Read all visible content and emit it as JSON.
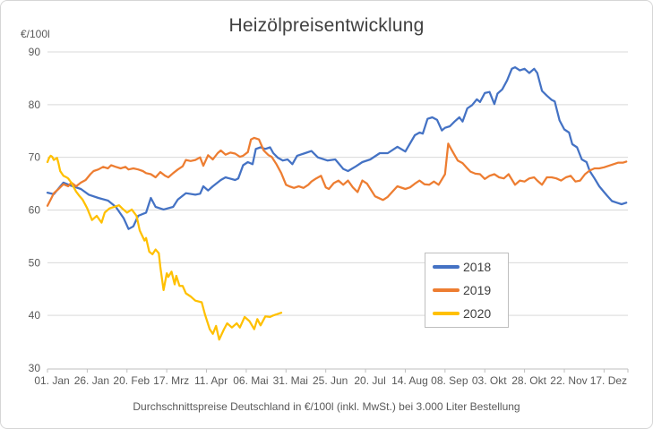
{
  "colors": {
    "background": "#FFFFFF",
    "border": "#D6D6D6",
    "gridline": "#D9D9D9",
    "axis_line": "#BFBFBF",
    "tick_text": "#595959",
    "title_text": "#404040",
    "legend_text": "#404040",
    "series_2018": "#4472C4",
    "series_2019": "#ED7D31",
    "series_2020": "#FFC000"
  },
  "chart_data": {
    "type": "line",
    "title": "Heizölpreisentwicklung",
    "unit_label": "€/100l",
    "caption": "Durchschnittspreise Deutschland in €/100l (inkl. MwSt.) bei 3.000 Liter Bestellung",
    "ylim": [
      30,
      90
    ],
    "yticks": [
      30,
      40,
      50,
      60,
      70,
      80,
      90
    ],
    "x_unit": "day_of_year",
    "xlim": [
      0,
      365
    ],
    "grid": "horizontal",
    "legend_position": "inside-right",
    "xticks": [
      {
        "label": "01. Jan",
        "day": 0
      },
      {
        "label": "26. Jan",
        "day": 25
      },
      {
        "label": "20. Feb",
        "day": 50
      },
      {
        "label": "17. Mrz",
        "day": 75
      },
      {
        "label": "11. Apr",
        "day": 100
      },
      {
        "label": "06. Mai",
        "day": 125
      },
      {
        "label": "31. Mai",
        "day": 150
      },
      {
        "label": "25. Jun",
        "day": 175
      },
      {
        "label": "20. Jul",
        "day": 200
      },
      {
        "label": "14. Aug",
        "day": 225
      },
      {
        "label": "08. Sep",
        "day": 250
      },
      {
        "label": "03. Okt",
        "day": 275
      },
      {
        "label": "28. Okt",
        "day": 300
      },
      {
        "label": "22. Nov",
        "day": 325
      },
      {
        "label": "17. Dez",
        "day": 350
      }
    ],
    "series": [
      {
        "name": "2018",
        "color": "#4472C4",
        "points": [
          [
            0,
            63.3
          ],
          [
            4,
            63.0
          ],
          [
            10,
            65.2
          ],
          [
            15,
            64.6
          ],
          [
            21,
            64.0
          ],
          [
            26,
            62.9
          ],
          [
            32,
            62.3
          ],
          [
            38,
            61.8
          ],
          [
            43,
            60.6
          ],
          [
            48,
            58.4
          ],
          [
            51,
            56.4
          ],
          [
            54,
            56.9
          ],
          [
            57,
            58.9
          ],
          [
            62,
            59.5
          ],
          [
            65,
            62.3
          ],
          [
            68,
            60.6
          ],
          [
            73,
            60.1
          ],
          [
            79,
            60.6
          ],
          [
            82,
            62.0
          ],
          [
            87,
            63.2
          ],
          [
            93,
            62.9
          ],
          [
            96,
            63.1
          ],
          [
            98,
            64.5
          ],
          [
            101,
            63.7
          ],
          [
            104,
            64.5
          ],
          [
            109,
            65.7
          ],
          [
            112,
            66.2
          ],
          [
            118,
            65.7
          ],
          [
            120,
            66.0
          ],
          [
            123,
            68.5
          ],
          [
            126,
            69.1
          ],
          [
            129,
            68.7
          ],
          [
            131,
            71.6
          ],
          [
            134,
            71.9
          ],
          [
            137,
            71.6
          ],
          [
            140,
            71.9
          ],
          [
            142,
            70.8
          ],
          [
            145,
            69.9
          ],
          [
            148,
            69.4
          ],
          [
            151,
            69.6
          ],
          [
            154,
            68.7
          ],
          [
            157,
            70.3
          ],
          [
            162,
            70.8
          ],
          [
            166,
            71.2
          ],
          [
            170,
            70.0
          ],
          [
            176,
            69.4
          ],
          [
            181,
            69.6
          ],
          [
            186,
            67.8
          ],
          [
            189,
            67.4
          ],
          [
            194,
            68.3
          ],
          [
            198,
            69.1
          ],
          [
            203,
            69.6
          ],
          [
            209,
            70.8
          ],
          [
            214,
            70.8
          ],
          [
            220,
            72.0
          ],
          [
            225,
            71.1
          ],
          [
            231,
            74.2
          ],
          [
            234,
            74.7
          ],
          [
            236,
            74.5
          ],
          [
            239,
            77.3
          ],
          [
            242,
            77.6
          ],
          [
            245,
            77.1
          ],
          [
            248,
            75.1
          ],
          [
            250,
            75.6
          ],
          [
            253,
            75.9
          ],
          [
            256,
            76.8
          ],
          [
            259,
            77.6
          ],
          [
            261,
            76.8
          ],
          [
            264,
            79.3
          ],
          [
            267,
            79.9
          ],
          [
            270,
            81.0
          ],
          [
            272,
            80.5
          ],
          [
            275,
            82.2
          ],
          [
            278,
            82.4
          ],
          [
            281,
            80.1
          ],
          [
            283,
            82.1
          ],
          [
            286,
            82.9
          ],
          [
            289,
            84.6
          ],
          [
            292,
            86.8
          ],
          [
            294,
            87.1
          ],
          [
            297,
            86.5
          ],
          [
            300,
            86.8
          ],
          [
            303,
            86.0
          ],
          [
            306,
            86.8
          ],
          [
            308,
            86.0
          ],
          [
            311,
            82.6
          ],
          [
            314,
            81.7
          ],
          [
            317,
            80.9
          ],
          [
            319,
            80.6
          ],
          [
            322,
            77.0
          ],
          [
            325,
            75.3
          ],
          [
            328,
            74.7
          ],
          [
            330,
            72.5
          ],
          [
            333,
            71.9
          ],
          [
            336,
            69.6
          ],
          [
            339,
            69.1
          ],
          [
            341,
            67.4
          ],
          [
            344,
            66.0
          ],
          [
            347,
            64.5
          ],
          [
            350,
            63.4
          ],
          [
            352,
            62.7
          ],
          [
            355,
            61.7
          ],
          [
            358,
            61.4
          ],
          [
            361,
            61.1
          ],
          [
            364,
            61.4
          ]
        ]
      },
      {
        "name": "2019",
        "color": "#ED7D31",
        "points": [
          [
            0,
            60.8
          ],
          [
            2,
            62.0
          ],
          [
            4,
            63.2
          ],
          [
            7,
            64.0
          ],
          [
            10,
            64.9
          ],
          [
            13,
            64.5
          ],
          [
            15,
            65.2
          ],
          [
            18,
            64.5
          ],
          [
            21,
            65.2
          ],
          [
            24,
            65.7
          ],
          [
            27,
            66.8
          ],
          [
            29,
            67.4
          ],
          [
            32,
            67.7
          ],
          [
            35,
            68.2
          ],
          [
            38,
            67.9
          ],
          [
            40,
            68.5
          ],
          [
            43,
            68.2
          ],
          [
            46,
            67.9
          ],
          [
            49,
            68.2
          ],
          [
            51,
            67.7
          ],
          [
            54,
            67.9
          ],
          [
            57,
            67.7
          ],
          [
            60,
            67.4
          ],
          [
            62,
            67.0
          ],
          [
            65,
            66.8
          ],
          [
            68,
            66.2
          ],
          [
            71,
            67.2
          ],
          [
            74,
            66.5
          ],
          [
            76,
            66.2
          ],
          [
            79,
            67.0
          ],
          [
            82,
            67.7
          ],
          [
            85,
            68.3
          ],
          [
            87,
            69.5
          ],
          [
            90,
            69.3
          ],
          [
            93,
            69.5
          ],
          [
            96,
            70.0
          ],
          [
            98,
            68.4
          ],
          [
            101,
            70.4
          ],
          [
            104,
            69.6
          ],
          [
            107,
            70.8
          ],
          [
            109,
            71.3
          ],
          [
            112,
            70.5
          ],
          [
            115,
            70.9
          ],
          [
            118,
            70.7
          ],
          [
            121,
            70.1
          ],
          [
            123,
            70.3
          ],
          [
            126,
            71.0
          ],
          [
            128,
            73.4
          ],
          [
            130,
            73.7
          ],
          [
            133,
            73.4
          ],
          [
            136,
            71.3
          ],
          [
            139,
            70.4
          ],
          [
            141,
            70.1
          ],
          [
            144,
            68.7
          ],
          [
            147,
            67.0
          ],
          [
            150,
            64.8
          ],
          [
            152,
            64.5
          ],
          [
            155,
            64.2
          ],
          [
            158,
            64.5
          ],
          [
            161,
            64.2
          ],
          [
            164,
            64.8
          ],
          [
            166,
            65.4
          ],
          [
            169,
            66.0
          ],
          [
            172,
            66.5
          ],
          [
            175,
            64.3
          ],
          [
            177,
            64.0
          ],
          [
            180,
            65.1
          ],
          [
            183,
            65.6
          ],
          [
            186,
            64.8
          ],
          [
            189,
            65.6
          ],
          [
            192,
            64.3
          ],
          [
            195,
            63.4
          ],
          [
            198,
            65.6
          ],
          [
            201,
            65.0
          ],
          [
            206,
            62.6
          ],
          [
            211,
            61.9
          ],
          [
            214,
            62.5
          ],
          [
            217,
            63.5
          ],
          [
            220,
            64.5
          ],
          [
            225,
            64.0
          ],
          [
            228,
            64.3
          ],
          [
            231,
            65.0
          ],
          [
            234,
            65.6
          ],
          [
            237,
            64.9
          ],
          [
            240,
            64.8
          ],
          [
            243,
            65.4
          ],
          [
            246,
            64.8
          ],
          [
            250,
            66.8
          ],
          [
            252,
            72.6
          ],
          [
            254,
            71.5
          ],
          [
            258,
            69.4
          ],
          [
            261,
            68.9
          ],
          [
            264,
            67.9
          ],
          [
            266,
            67.3
          ],
          [
            269,
            66.9
          ],
          [
            272,
            66.8
          ],
          [
            275,
            65.9
          ],
          [
            278,
            66.5
          ],
          [
            281,
            66.8
          ],
          [
            284,
            66.2
          ],
          [
            287,
            66.0
          ],
          [
            290,
            66.8
          ],
          [
            294,
            64.8
          ],
          [
            297,
            65.6
          ],
          [
            300,
            65.4
          ],
          [
            303,
            66.0
          ],
          [
            306,
            66.2
          ],
          [
            308,
            65.6
          ],
          [
            311,
            64.8
          ],
          [
            314,
            66.2
          ],
          [
            317,
            66.2
          ],
          [
            320,
            66.0
          ],
          [
            323,
            65.6
          ],
          [
            326,
            66.2
          ],
          [
            329,
            66.5
          ],
          [
            332,
            65.4
          ],
          [
            335,
            65.6
          ],
          [
            338,
            66.8
          ],
          [
            341,
            67.5
          ],
          [
            344,
            67.9
          ],
          [
            347,
            67.9
          ],
          [
            350,
            68.1
          ],
          [
            353,
            68.4
          ],
          [
            356,
            68.7
          ],
          [
            359,
            69.0
          ],
          [
            362,
            69.0
          ],
          [
            364,
            69.2
          ]
        ]
      },
      {
        "name": "2020",
        "color": "#FFC000",
        "points": [
          [
            0,
            69.1
          ],
          [
            1,
            69.9
          ],
          [
            2,
            70.3
          ],
          [
            3,
            70.1
          ],
          [
            4,
            69.5
          ],
          [
            6,
            69.9
          ],
          [
            7,
            68.8
          ],
          [
            8,
            67.4
          ],
          [
            10,
            66.5
          ],
          [
            12,
            66.2
          ],
          [
            13,
            66.0
          ],
          [
            15,
            65.2
          ],
          [
            16,
            64.6
          ],
          [
            18,
            63.5
          ],
          [
            20,
            62.7
          ],
          [
            22,
            62.0
          ],
          [
            24,
            60.9
          ],
          [
            25,
            60.3
          ],
          [
            28,
            58.1
          ],
          [
            31,
            58.9
          ],
          [
            34,
            57.6
          ],
          [
            36,
            59.5
          ],
          [
            39,
            60.3
          ],
          [
            42,
            60.6
          ],
          [
            45,
            60.9
          ],
          [
            47,
            60.3
          ],
          [
            50,
            59.5
          ],
          [
            53,
            60.1
          ],
          [
            56,
            58.9
          ],
          [
            58,
            56.1
          ],
          [
            61,
            54.2
          ],
          [
            62,
            54.7
          ],
          [
            64,
            52.1
          ],
          [
            66,
            51.6
          ],
          [
            68,
            52.5
          ],
          [
            70,
            51.8
          ],
          [
            71,
            49.2
          ],
          [
            73,
            44.8
          ],
          [
            75,
            48.0
          ],
          [
            76,
            47.3
          ],
          [
            78,
            48.3
          ],
          [
            80,
            45.9
          ],
          [
            81,
            47.5
          ],
          [
            83,
            45.6
          ],
          [
            85,
            45.6
          ],
          [
            87,
            44.2
          ],
          [
            90,
            43.6
          ],
          [
            93,
            42.8
          ],
          [
            97,
            42.5
          ],
          [
            99,
            40.2
          ],
          [
            102,
            37.4
          ],
          [
            104,
            36.5
          ],
          [
            106,
            38.0
          ],
          [
            108,
            35.4
          ],
          [
            111,
            37.4
          ],
          [
            113,
            38.5
          ],
          [
            116,
            37.7
          ],
          [
            119,
            38.5
          ],
          [
            121,
            37.7
          ],
          [
            124,
            39.7
          ],
          [
            127,
            38.9
          ],
          [
            130,
            37.4
          ],
          [
            132,
            39.3
          ],
          [
            134,
            38.1
          ],
          [
            137,
            39.8
          ],
          [
            140,
            39.7
          ],
          [
            142,
            40.0
          ],
          [
            145,
            40.3
          ],
          [
            147,
            40.5
          ]
        ]
      }
    ]
  }
}
